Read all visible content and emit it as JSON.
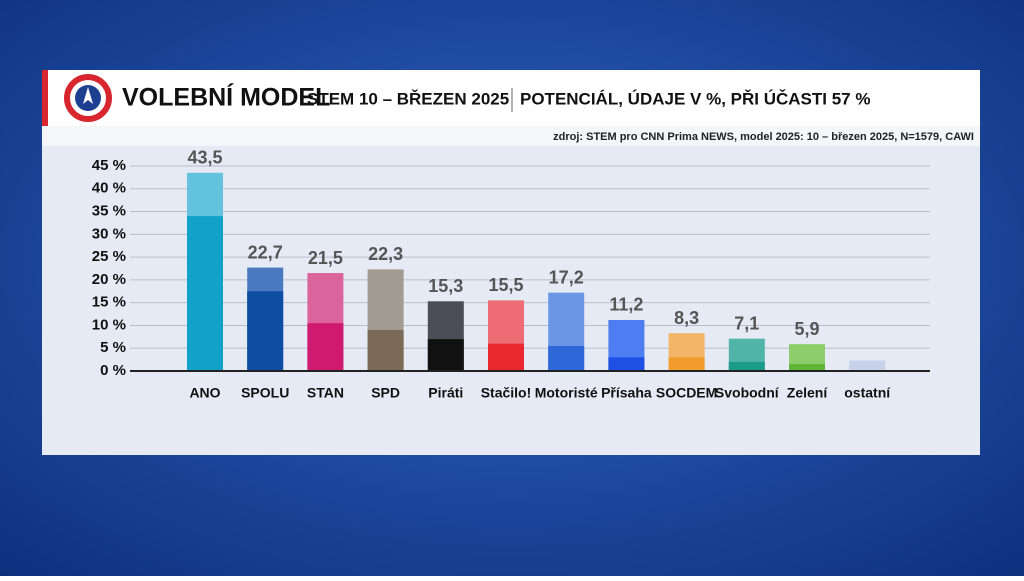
{
  "header": {
    "title": "VOLEBNÍ MODEL",
    "subtitle": "STEM 10 – BŘEZEN 2025",
    "note": "POTENCIÁL, ÚDAJE V %, PŘI ÚČASTI 57 %",
    "source": "zdroj: STEM pro CNN Prima NEWS, model 2025: 10 – březen 2025, N=1579, CAWI"
  },
  "chart_data": {
    "type": "bar",
    "categories": [
      "ANO",
      "SPOLU",
      "STAN",
      "SPD",
      "Piráti",
      "Stačilo!",
      "Motoristé",
      "Přísaha",
      "SOCDEM",
      "Svobodní",
      "Zelení",
      "ostatní"
    ],
    "values": [
      43.5,
      22.7,
      21.5,
      22.3,
      15.3,
      15.5,
      17.2,
      11.2,
      8.3,
      7.1,
      5.9,
      2.3
    ],
    "value_labels": [
      "43,5",
      "22,7",
      "21,5",
      "22,3",
      "15,3",
      "15,5",
      "17,2",
      "11,2",
      "8,3",
      "7,1",
      "5,9",
      null
    ],
    "core_values": [
      34,
      17.5,
      10.5,
      9,
      7,
      6,
      5.5,
      3,
      3,
      2,
      1.5,
      null
    ],
    "colors": [
      "#63c3dd",
      "#4b79c1",
      "#db649c",
      "#a29b91",
      "#4b4e56",
      "#ee6c74",
      "#6b96e6",
      "#4d7df0",
      "#f3b568",
      "#50b4a9",
      "#8dcd6b",
      "#c6d2ec"
    ],
    "core_colors": [
      "#12a1c9",
      "#0d4ea3",
      "#d01a6f",
      "#7b6b56",
      "#111111",
      "#e8272f",
      "#2e67d8",
      "#1e50e6",
      "#f09b2b",
      "#1b9b89",
      "#5db435",
      null
    ],
    "ylim": [
      0,
      45
    ],
    "yticks": [
      {
        "value": 0,
        "label": "0 %"
      },
      {
        "value": 5,
        "label": "5 %"
      },
      {
        "value": 10,
        "label": "10 %"
      },
      {
        "value": 15,
        "label": "15 %"
      },
      {
        "value": 20,
        "label": "20 %"
      },
      {
        "value": 25,
        "label": "25 %"
      },
      {
        "value": 30,
        "label": "30 %"
      },
      {
        "value": 35,
        "label": "35 %"
      },
      {
        "value": 40,
        "label": "40 %"
      },
      {
        "value": 45,
        "label": "45 %"
      }
    ],
    "grid": true
  }
}
